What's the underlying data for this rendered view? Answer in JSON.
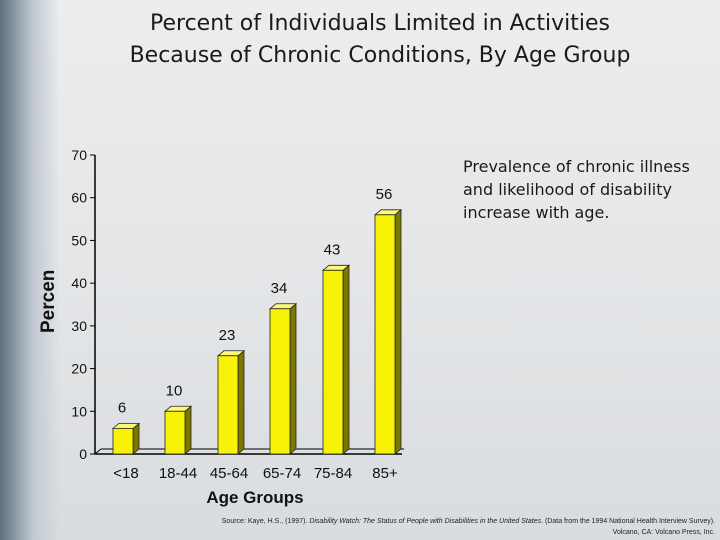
{
  "slide": {
    "title_line1": "Percent of Individuals Limited in Activities",
    "title_line2": "Because of Chronic Conditions, By Age Group",
    "note": "Prevalence of chronic illness and likelihood of disability increase with age.",
    "source_prefix": "Source: Kaye, H.S., (1997). ",
    "source_title": "Disability Watch: The Status of People with Disabilities in the United States",
    "source_suffix": ". (Data from the 1994 National Health Interview Survey). Volcano, CA: Volcano Press, Inc."
  },
  "colors": {
    "bar_front": "#f7f207",
    "bar_side": "#7b7800",
    "bar_top": "#fbf87a",
    "axis": "#000000"
  },
  "chart_data": {
    "type": "bar",
    "title": "",
    "categories": [
      "<18",
      "18-44",
      "45-64",
      "65-74",
      "75-84",
      "85+"
    ],
    "values": [
      6,
      10,
      23,
      34,
      43,
      56
    ],
    "xlabel": "Age Groups",
    "ylabel": "Percent",
    "ylim": [
      0,
      70
    ],
    "yticks": [
      0,
      10,
      20,
      30,
      40,
      50,
      60,
      70
    ],
    "grid": false,
    "data_labels": true,
    "style": "3d"
  }
}
